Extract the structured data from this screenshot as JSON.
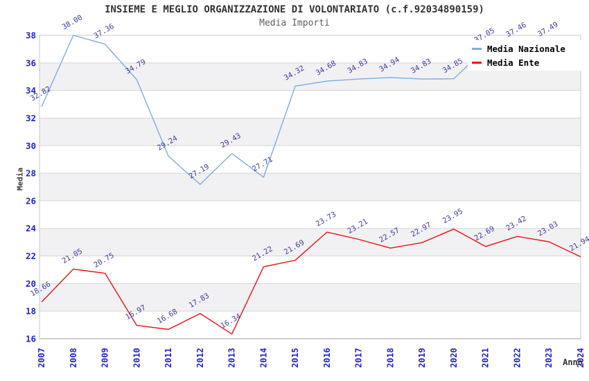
{
  "title": "INSIEME E MEGLIO ORGANIZZAZIONE DI VOLONTARIATO (c.f.92034890159)",
  "subtitle": "Media Importi",
  "colors": {
    "band": "#f1f1f3",
    "grid": "#d6d6d6",
    "border": "#c8c8cc",
    "axis": "#9b9ba1",
    "tick_label": "#2323cb",
    "data_label": "#3b3b9d",
    "national_line": "#7cacdf",
    "entity_line": "#ee1111"
  },
  "chart_data": {
    "type": "line",
    "title": "INSIEME E MEGLIO ORGANIZZAZIONE DI VOLONTARIATO (c.f.92034890159)",
    "subtitle": "Media Importi",
    "xlabel": "Anno",
    "ylabel": "Media",
    "ylim": [
      16,
      38
    ],
    "ytick_step": 2,
    "grid": true,
    "band_fill": "alternating",
    "legend_position": "top-right",
    "categories": [
      "2007",
      "2008",
      "2009",
      "2010",
      "2011",
      "2012",
      "2013",
      "2014",
      "2015",
      "2016",
      "2017",
      "2018",
      "2019",
      "2020",
      "2021",
      "2022",
      "2023",
      "2024"
    ],
    "series": [
      {
        "name": "Media Nazionale",
        "color": "#7cacdf",
        "values": [
          32.82,
          38.0,
          37.36,
          34.79,
          29.24,
          27.19,
          29.43,
          27.71,
          34.32,
          34.68,
          34.83,
          34.94,
          34.83,
          34.85,
          37.05,
          37.46,
          37.49,
          null
        ]
      },
      {
        "name": "Media Ente",
        "color": "#ee1111",
        "values": [
          18.66,
          21.05,
          20.75,
          16.97,
          16.68,
          17.83,
          16.34,
          21.22,
          21.69,
          23.73,
          23.21,
          22.57,
          22.97,
          23.95,
          22.69,
          23.42,
          23.03,
          21.94
        ]
      }
    ]
  }
}
